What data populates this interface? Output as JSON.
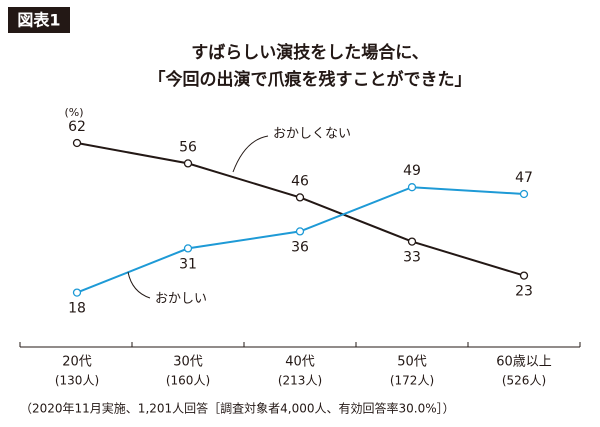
{
  "chart_data": {
    "type": "line",
    "badge": "図表1",
    "title": [
      "すばらしい演技をした場合に、",
      "「今回の出演で爪痕を残すことができた」"
    ],
    "unit": "(%)",
    "categories": [
      "20代",
      "30代",
      "40代",
      "50代",
      "60歳以上"
    ],
    "category_sublabels": [
      "(130人)",
      "(160人)",
      "(213人)",
      "(172人)",
      "(526人)"
    ],
    "series": [
      {
        "name": "おかしくない",
        "color": "#231815",
        "values": [
          62,
          56,
          46,
          33,
          23
        ]
      },
      {
        "name": "おかしい",
        "color": "#1e9ad6",
        "values": [
          18,
          31,
          36,
          49,
          47
        ]
      }
    ],
    "ylim": [
      2,
      62
    ],
    "footnote": "（2020年11月実施、1,201人回答［調査対象者4,000人、有効回答率30.0%］）"
  }
}
